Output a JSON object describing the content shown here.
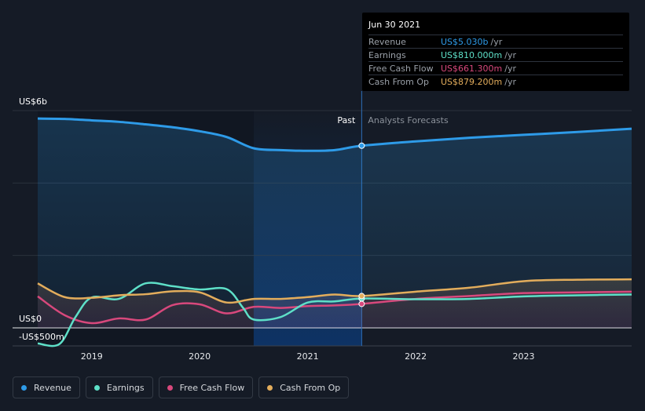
{
  "tooltip": {
    "date": "Jun 30 2021",
    "rows": [
      {
        "label": "Revenue",
        "value": "US$5.030b",
        "unit": "/yr",
        "color": "#2e9be8"
      },
      {
        "label": "Earnings",
        "value": "US$810.000m",
        "unit": "/yr",
        "color": "#5ee0c8"
      },
      {
        "label": "Free Cash Flow",
        "value": "US$661.300m",
        "unit": "/yr",
        "color": "#d8487c"
      },
      {
        "label": "Cash From Op",
        "value": "US$879.200m",
        "unit": "/yr",
        "color": "#e3ad5c"
      }
    ]
  },
  "legend": [
    {
      "label": "Revenue",
      "color": "#2e9be8"
    },
    {
      "label": "Earnings",
      "color": "#5ee0c8"
    },
    {
      "label": "Free Cash Flow",
      "color": "#d8487c"
    },
    {
      "label": "Cash From Op",
      "color": "#e3ad5c"
    }
  ],
  "chart_data": {
    "type": "line",
    "past_label": "Past",
    "forecast_label": "Analysts Forecasts",
    "ytick_labels": [
      "US$6b",
      "US$0",
      "-US$500m"
    ],
    "ylim": [
      -500,
      6000
    ],
    "xlim": [
      2018.5,
      2024.0
    ],
    "xtick_labels": [
      "2019",
      "2020",
      "2021",
      "2022",
      "2023"
    ],
    "xticks": [
      2019,
      2020,
      2021,
      2022,
      2023
    ],
    "past_start": 2020.5,
    "past_end": 2021.5,
    "series": [
      {
        "name": "Revenue",
        "color": "#2e9be8",
        "points": [
          [
            2018.5,
            5780
          ],
          [
            2018.75,
            5770
          ],
          [
            2019.0,
            5730
          ],
          [
            2019.25,
            5690
          ],
          [
            2019.5,
            5620
          ],
          [
            2019.75,
            5540
          ],
          [
            2020.0,
            5430
          ],
          [
            2020.25,
            5270
          ],
          [
            2020.5,
            4960
          ],
          [
            2020.75,
            4910
          ],
          [
            2021.0,
            4890
          ],
          [
            2021.25,
            4910
          ],
          [
            2021.5,
            5030
          ],
          [
            2022.0,
            5150
          ],
          [
            2022.5,
            5250
          ],
          [
            2023.0,
            5330
          ],
          [
            2023.5,
            5410
          ],
          [
            2024.0,
            5500
          ]
        ]
      },
      {
        "name": "Earnings",
        "color": "#5ee0c8",
        "points": [
          [
            2018.5,
            -430
          ],
          [
            2018.7,
            -450
          ],
          [
            2018.85,
            300
          ],
          [
            2019.0,
            840
          ],
          [
            2019.25,
            800
          ],
          [
            2019.5,
            1230
          ],
          [
            2019.75,
            1150
          ],
          [
            2020.0,
            1060
          ],
          [
            2020.25,
            1070
          ],
          [
            2020.4,
            560
          ],
          [
            2020.5,
            230
          ],
          [
            2020.75,
            300
          ],
          [
            2021.0,
            700
          ],
          [
            2021.25,
            730
          ],
          [
            2021.5,
            810
          ],
          [
            2022.0,
            790
          ],
          [
            2022.5,
            800
          ],
          [
            2023.0,
            870
          ],
          [
            2023.5,
            900
          ],
          [
            2024.0,
            920
          ]
        ]
      },
      {
        "name": "Free Cash Flow",
        "color": "#d8487c",
        "points": [
          [
            2018.5,
            870
          ],
          [
            2018.75,
            350
          ],
          [
            2019.0,
            130
          ],
          [
            2019.25,
            260
          ],
          [
            2019.5,
            230
          ],
          [
            2019.75,
            630
          ],
          [
            2020.0,
            650
          ],
          [
            2020.25,
            400
          ],
          [
            2020.5,
            580
          ],
          [
            2020.75,
            550
          ],
          [
            2021.0,
            600
          ],
          [
            2021.25,
            620
          ],
          [
            2021.5,
            661
          ],
          [
            2022.0,
            800
          ],
          [
            2022.5,
            880
          ],
          [
            2023.0,
            960
          ],
          [
            2023.5,
            980
          ],
          [
            2024.0,
            1000
          ]
        ]
      },
      {
        "name": "Cash From Op",
        "color": "#e3ad5c",
        "points": [
          [
            2018.5,
            1230
          ],
          [
            2018.75,
            850
          ],
          [
            2019.0,
            830
          ],
          [
            2019.25,
            900
          ],
          [
            2019.5,
            930
          ],
          [
            2019.75,
            1010
          ],
          [
            2020.0,
            980
          ],
          [
            2020.25,
            700
          ],
          [
            2020.5,
            800
          ],
          [
            2020.75,
            800
          ],
          [
            2021.0,
            850
          ],
          [
            2021.25,
            920
          ],
          [
            2021.5,
            879
          ],
          [
            2022.0,
            1000
          ],
          [
            2022.5,
            1110
          ],
          [
            2023.0,
            1290
          ],
          [
            2023.5,
            1330
          ],
          [
            2024.0,
            1340
          ]
        ]
      }
    ]
  }
}
